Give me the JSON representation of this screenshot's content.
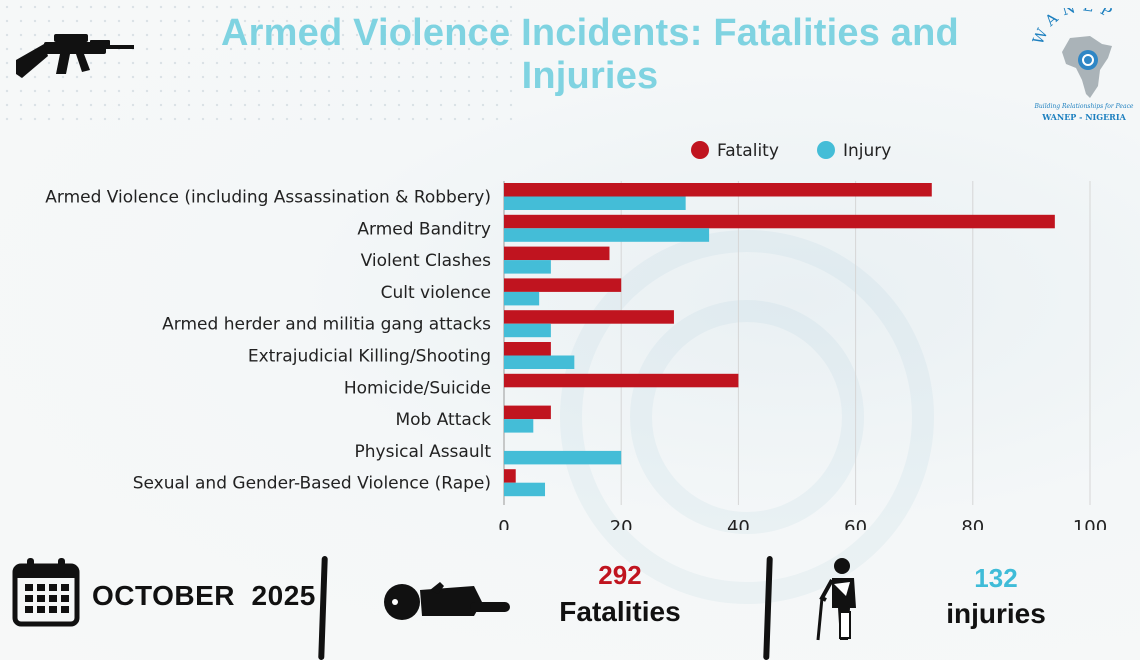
{
  "header": {
    "title": "Armed Violence Incidents: Fatalities and Injuries"
  },
  "logo": {
    "text_top": "WANEP",
    "tagline": "Building Relationships for Peace",
    "text_bottom": "WANEP - NIGERIA"
  },
  "colors": {
    "fatality": "#c0141f",
    "injury": "#44bdd7",
    "title": "#7fd3e1",
    "fatal_count": "#c0141f",
    "injury_count": "#3fbcd8"
  },
  "chart_data": {
    "type": "bar",
    "orientation": "horizontal",
    "categories": [
      "Armed Violence (including Assassination & Robbery)",
      "Armed Banditry",
      "Violent Clashes",
      "Cult violence",
      "Armed herder and militia gang attacks",
      "Extrajudicial Killing/Shooting",
      "Homicide/Suicide",
      "Mob Attack",
      "Physical Assault",
      "Sexual and Gender-Based Violence (Rape)"
    ],
    "series": [
      {
        "name": "Fatality",
        "values": [
          73,
          94,
          18,
          20,
          29,
          8,
          40,
          8,
          0,
          2
        ]
      },
      {
        "name": "Injury",
        "values": [
          31,
          35,
          8,
          6,
          8,
          12,
          0,
          5,
          20,
          7
        ]
      }
    ],
    "xlim": [
      0,
      100
    ],
    "xticks": [
      "0",
      "20",
      "40",
      "60",
      "80",
      "100"
    ],
    "legend_position": "top",
    "grid": true
  },
  "footer": {
    "date": "OCTOBER  2025",
    "fatalities_count": "292",
    "fatalities_label": "Fatalities",
    "injuries_count": "132",
    "injuries_label": "injuries"
  }
}
